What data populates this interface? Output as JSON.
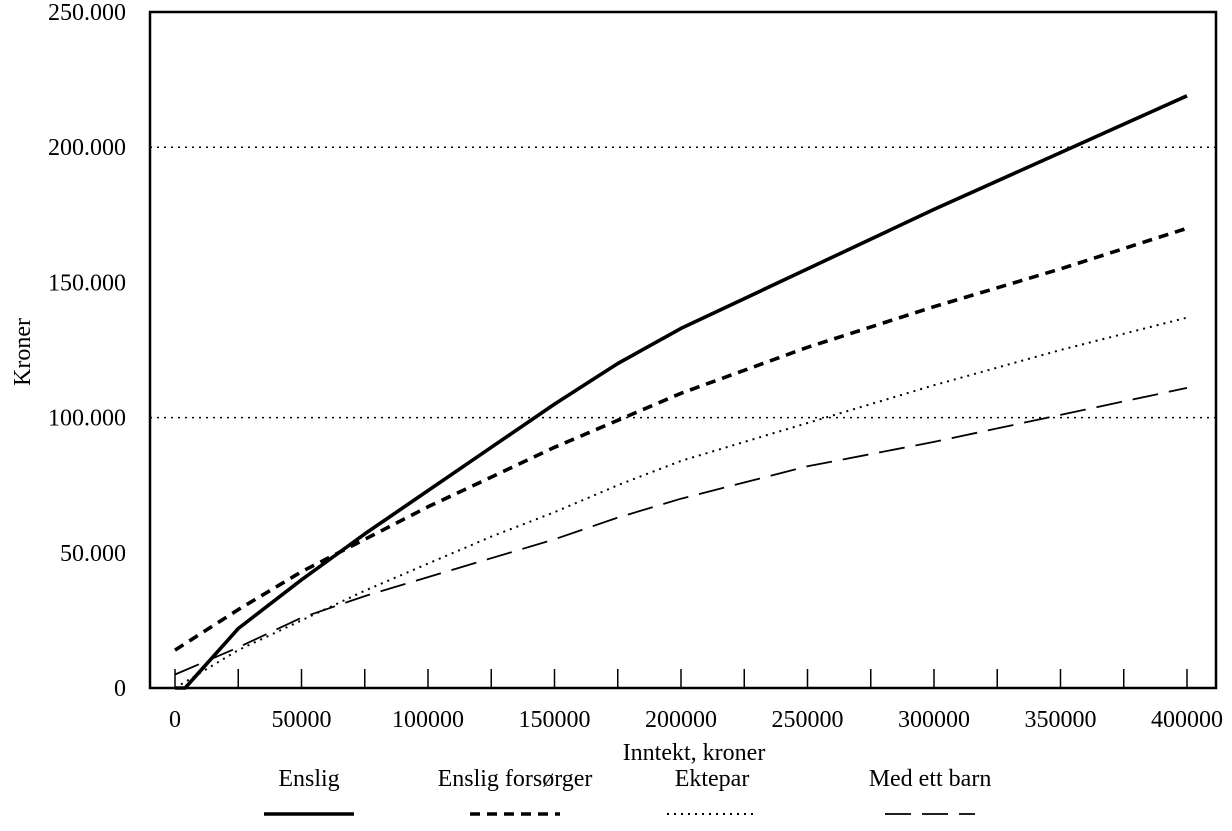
{
  "chart_data": {
    "type": "line",
    "title": "",
    "xlabel": "Inntekt, kroner",
    "ylabel": "Kroner",
    "xlim": [
      0,
      400000
    ],
    "ylim": [
      0,
      250000
    ],
    "x_ticks": [
      0,
      50000,
      100000,
      150000,
      200000,
      250000,
      300000,
      350000,
      400000
    ],
    "x_tick_labels": [
      "0",
      "50000",
      "100000",
      "150000",
      "200000",
      "250000",
      "300000",
      "350000",
      "400000"
    ],
    "y_ticks": [
      0,
      50000,
      100000,
      150000,
      200000,
      250000
    ],
    "y_tick_labels": [
      "0",
      "50.000",
      "100.000",
      "150.000",
      "200.000",
      "250.000"
    ],
    "reference_lines_y": [
      100000,
      200000
    ],
    "legend_position": "bottom",
    "series": [
      {
        "name": "Enslig",
        "style": "solid",
        "x": [
          0,
          4000,
          25000,
          50000,
          75000,
          100000,
          125000,
          150000,
          175000,
          200000,
          250000,
          300000,
          350000,
          400000
        ],
        "y": [
          0,
          0,
          22000,
          40000,
          57000,
          73000,
          89000,
          105000,
          120000,
          133000,
          155000,
          177000,
          198000,
          219000
        ]
      },
      {
        "name": "Enslig forsørger",
        "style": "short-dash",
        "x": [
          0,
          25000,
          50000,
          75000,
          100000,
          125000,
          150000,
          175000,
          200000,
          250000,
          300000,
          350000,
          400000
        ],
        "y": [
          14000,
          29000,
          43000,
          55000,
          67000,
          78000,
          89000,
          99000,
          109000,
          126000,
          141000,
          155000,
          170000
        ]
      },
      {
        "name": "Ektepar",
        "style": "dotted",
        "x": [
          0,
          25000,
          50000,
          75000,
          100000,
          125000,
          150000,
          175000,
          200000,
          250000,
          300000,
          350000,
          400000
        ],
        "y": [
          0,
          14000,
          25000,
          36000,
          46000,
          56000,
          65000,
          75000,
          84000,
          98000,
          112000,
          125000,
          137000
        ]
      },
      {
        "name": "Med ett barn",
        "style": "long-dash",
        "x": [
          0,
          25000,
          50000,
          75000,
          100000,
          125000,
          150000,
          175000,
          200000,
          250000,
          300000,
          350000,
          400000
        ],
        "y": [
          5000,
          15000,
          26000,
          34000,
          41000,
          48000,
          55000,
          63000,
          70000,
          82000,
          91000,
          101000,
          111000
        ]
      }
    ]
  }
}
